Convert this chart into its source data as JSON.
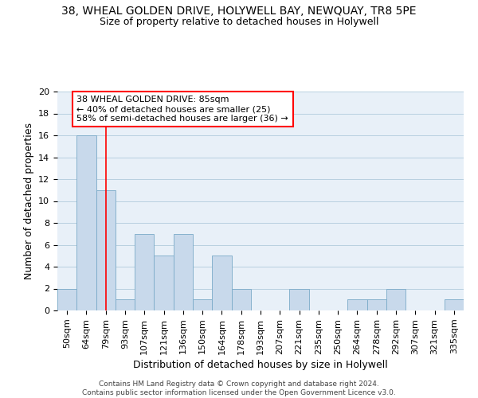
{
  "title_line1": "38, WHEAL GOLDEN DRIVE, HOLYWELL BAY, NEWQUAY, TR8 5PE",
  "title_line2": "Size of property relative to detached houses in Holywell",
  "xlabel": "Distribution of detached houses by size in Holywell",
  "ylabel": "Number of detached properties",
  "categories": [
    "50sqm",
    "64sqm",
    "79sqm",
    "93sqm",
    "107sqm",
    "121sqm",
    "136sqm",
    "150sqm",
    "164sqm",
    "178sqm",
    "193sqm",
    "207sqm",
    "221sqm",
    "235sqm",
    "250sqm",
    "264sqm",
    "278sqm",
    "292sqm",
    "307sqm",
    "321sqm",
    "335sqm"
  ],
  "values": [
    2,
    16,
    11,
    1,
    7,
    5,
    7,
    1,
    5,
    2,
    0,
    0,
    2,
    0,
    0,
    1,
    1,
    2,
    0,
    0,
    1
  ],
  "bar_color": "#c8d9eb",
  "bar_edge_color": "#7aaac8",
  "vline_x": 2,
  "vline_color": "red",
  "annotation_text": "38 WHEAL GOLDEN DRIVE: 85sqm\n← 40% of detached houses are smaller (25)\n58% of semi-detached houses are larger (36) →",
  "annotation_box_color": "white",
  "annotation_box_edge": "red",
  "ylim": [
    0,
    20
  ],
  "yticks": [
    0,
    2,
    4,
    6,
    8,
    10,
    12,
    14,
    16,
    18,
    20
  ],
  "grid_color": "#b8cfe0",
  "background_color": "#e8f0f8",
  "footer_line1": "Contains HM Land Registry data © Crown copyright and database right 2024.",
  "footer_line2": "Contains public sector information licensed under the Open Government Licence v3.0.",
  "title_fontsize": 10,
  "subtitle_fontsize": 9,
  "axis_label_fontsize": 9,
  "tick_fontsize": 8,
  "annotation_fontsize": 8,
  "footer_fontsize": 6.5
}
